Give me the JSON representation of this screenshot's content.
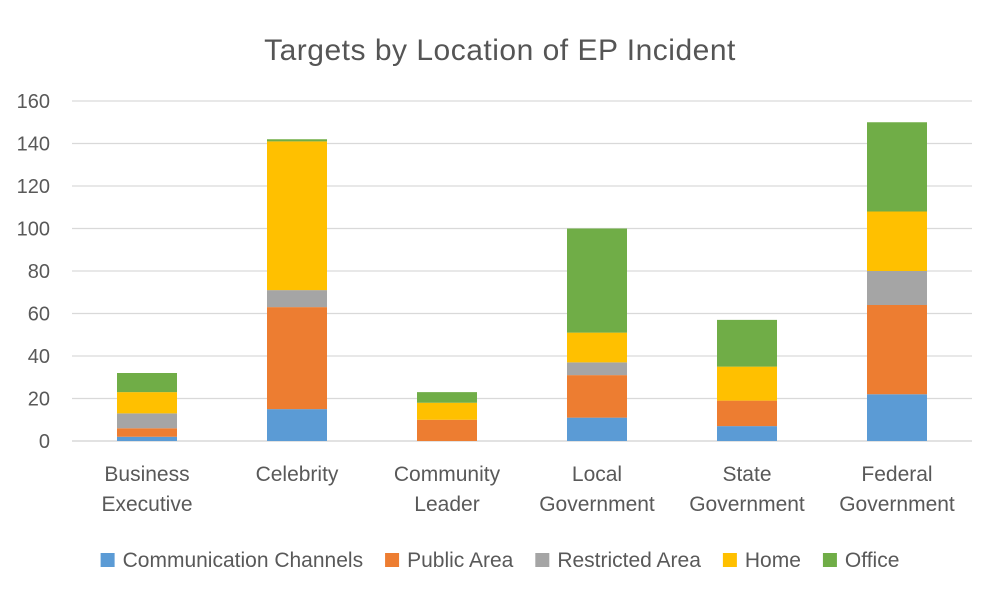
{
  "chart_data": {
    "type": "bar",
    "stacked": true,
    "title": "Targets by Location of EP Incident",
    "xlabel": "",
    "ylabel": "",
    "ylim": [
      0,
      160
    ],
    "yticks": [
      0,
      20,
      40,
      60,
      80,
      100,
      120,
      140,
      160
    ],
    "grid": true,
    "legend_position": "bottom",
    "categories": [
      [
        "Business",
        "Executive"
      ],
      [
        "Celebrity"
      ],
      [
        "Community",
        "Leader"
      ],
      [
        "Local",
        "Government"
      ],
      [
        "State",
        "Government"
      ],
      [
        "Federal",
        "Government"
      ]
    ],
    "series": [
      {
        "name": "Communication Channels",
        "color": "#5B9BD5",
        "values": [
          2,
          15,
          0,
          11,
          7,
          22
        ]
      },
      {
        "name": "Public Area",
        "color": "#ED7D31",
        "values": [
          4,
          48,
          10,
          20,
          12,
          42
        ]
      },
      {
        "name": "Restricted Area",
        "color": "#A5A5A5",
        "values": [
          7,
          8,
          0,
          6,
          0,
          16
        ]
      },
      {
        "name": "Home",
        "color": "#FFC000",
        "values": [
          10,
          70,
          8,
          14,
          16,
          28
        ]
      },
      {
        "name": "Office",
        "color": "#70AD47",
        "values": [
          9,
          1,
          5,
          49,
          22,
          42
        ]
      }
    ]
  }
}
